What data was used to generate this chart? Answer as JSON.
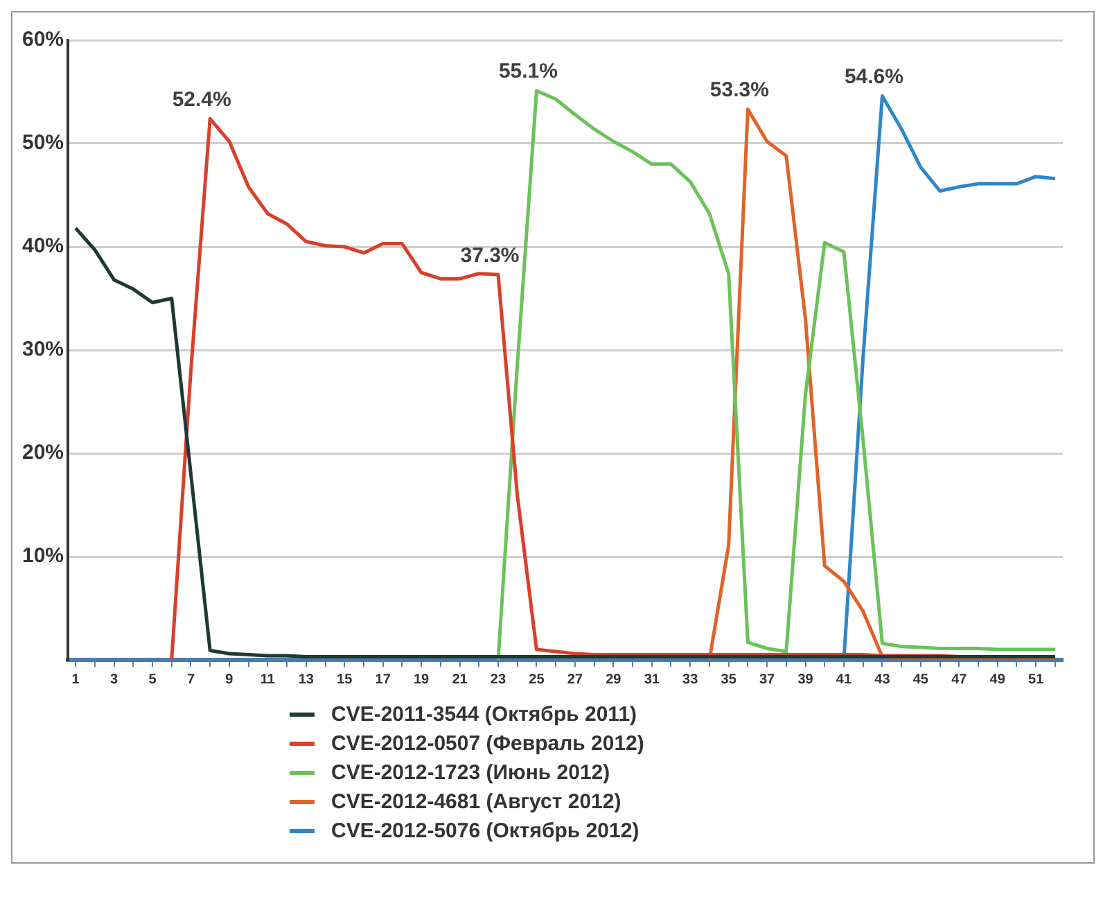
{
  "chart_data": {
    "type": "line",
    "x": [
      1,
      2,
      3,
      4,
      5,
      6,
      7,
      8,
      9,
      10,
      11,
      12,
      13,
      14,
      15,
      16,
      17,
      18,
      19,
      20,
      21,
      22,
      23,
      24,
      25,
      26,
      27,
      28,
      29,
      30,
      31,
      32,
      33,
      34,
      35,
      36,
      37,
      38,
      39,
      40,
      41,
      42,
      43,
      44,
      45,
      46,
      47,
      48,
      49,
      50,
      51,
      52
    ],
    "xlim": [
      0.6,
      52.4
    ],
    "xticks": [
      1,
      {
        "value": 2,
        "label": null
      },
      3,
      {
        "value": 4,
        "label": null
      },
      5,
      {
        "value": 6,
        "label": null
      },
      7,
      {
        "value": 8,
        "label": null
      },
      9,
      {
        "value": 10,
        "label": null
      },
      11,
      {
        "value": 12,
        "label": null
      },
      13,
      {
        "value": 14,
        "label": null
      },
      15,
      {
        "value": 16,
        "label": null
      },
      17,
      {
        "value": 18,
        "label": null
      },
      19,
      {
        "value": 20,
        "label": null
      },
      21,
      {
        "value": 22,
        "label": null
      },
      23,
      {
        "value": 24,
        "label": null
      },
      25,
      {
        "value": 26,
        "label": null
      },
      27,
      {
        "value": 28,
        "label": null
      },
      29,
      {
        "value": 30,
        "label": null
      },
      31,
      {
        "value": 32,
        "label": null
      },
      33,
      {
        "value": 34,
        "label": null
      },
      35,
      {
        "value": 36,
        "label": null
      },
      37,
      {
        "value": 38,
        "label": null
      },
      39,
      {
        "value": 40,
        "label": null
      },
      41,
      {
        "value": 42,
        "label": null
      },
      43,
      {
        "value": 44,
        "label": null
      },
      45,
      {
        "value": 46,
        "label": null
      },
      47,
      {
        "value": 48,
        "label": null
      },
      49,
      {
        "value": 50,
        "label": null
      },
      51,
      {
        "value": 52,
        "label": null
      }
    ],
    "ylim": [
      0,
      60
    ],
    "yticks": [
      {
        "value": 0,
        "label": null
      },
      {
        "value": 10,
        "label": "10%"
      },
      {
        "value": 20,
        "label": "20%"
      },
      {
        "value": 30,
        "label": "30%"
      },
      {
        "value": 40,
        "label": "40%"
      },
      {
        "value": 50,
        "label": "50%"
      },
      {
        "value": 60,
        "label": "60%"
      }
    ],
    "grid": "y",
    "legend": "bottom",
    "marker": "none",
    "line_style": "solid",
    "series": [
      {
        "name": "CVE-2011-3544 (Октябрь 2011)",
        "color": "#1e3a34",
        "values": [
          41.8,
          39.7,
          36.8,
          35.9,
          34.6,
          35.0,
          18,
          0.9,
          0.6,
          0.5,
          0.4,
          0.4,
          0.3,
          0.3,
          0.3,
          0.3,
          0.3,
          0.3,
          0.3,
          0.3,
          0.3,
          0.3,
          0.3,
          0.3,
          0.3,
          0.3,
          0.3,
          0.3,
          0.3,
          0.3,
          0.3,
          0.3,
          0.3,
          0.3,
          0.3,
          0.3,
          0.3,
          0.3,
          0.3,
          0.3,
          0.3,
          0.3,
          0.3,
          0.3,
          0.3,
          0.3,
          0.3,
          0.3,
          0.3,
          0.3,
          0.3,
          0.3
        ]
      },
      {
        "name": "CVE-2012-0507 (Февраль 2012)",
        "color": "#d8402c",
        "values": [
          null,
          null,
          null,
          null,
          null,
          0,
          28,
          52.4,
          50.2,
          45.8,
          43.2,
          42.2,
          40.5,
          40.1,
          40.0,
          39.4,
          40.3,
          40.3,
          37.5,
          36.9,
          36.9,
          37.4,
          37.3,
          15.9,
          1.0,
          0.8,
          0.6,
          0.5,
          0.5,
          0.5,
          0.5,
          0.5,
          0.5,
          0.5,
          0.5,
          0.5,
          0.5,
          0.5,
          0.5,
          0.5,
          0.5,
          0.5,
          0.4,
          0.4,
          0.4,
          0.4,
          0.3,
          0.3,
          0.3,
          0.3,
          0.3,
          0.3
        ]
      },
      {
        "name": "CVE-2012-1723 (Июнь 2012)",
        "color": "#6cc25a",
        "values": [
          null,
          null,
          null,
          null,
          null,
          null,
          null,
          null,
          null,
          null,
          null,
          null,
          null,
          null,
          null,
          null,
          null,
          null,
          null,
          null,
          null,
          null,
          0,
          28.6,
          55.1,
          54.3,
          52.8,
          51.4,
          50.2,
          49.2,
          48.0,
          48.0,
          46.3,
          43.2,
          37.4,
          1.7,
          1.1,
          0.8,
          25.7,
          40.4,
          39.5,
          21.3,
          1.6,
          1.3,
          1.2,
          1.1,
          1.1,
          1.1,
          1.0,
          1.0,
          1.0,
          1.0
        ]
      },
      {
        "name": "CVE-2012-4681 (Август 2012)",
        "color": "#e0632a",
        "values": [
          null,
          null,
          null,
          null,
          null,
          null,
          null,
          null,
          null,
          null,
          null,
          null,
          null,
          null,
          null,
          null,
          null,
          null,
          null,
          null,
          null,
          null,
          null,
          null,
          null,
          null,
          null,
          null,
          null,
          null,
          null,
          null,
          null,
          0,
          11.1,
          53.3,
          50.2,
          48.8,
          33.0,
          9.1,
          7.6,
          4.7,
          0.3,
          0.2,
          0.2,
          0.2,
          0.2,
          0.2,
          0.2,
          0.2,
          0.2,
          0.2
        ]
      },
      {
        "name": "CVE-2012-5076 (Октябрь 2012)",
        "color": "#2f86c8",
        "values": [
          null,
          null,
          null,
          null,
          null,
          null,
          null,
          null,
          null,
          null,
          null,
          null,
          null,
          null,
          null,
          null,
          null,
          null,
          null,
          null,
          null,
          null,
          null,
          null,
          null,
          null,
          null,
          null,
          null,
          null,
          null,
          null,
          null,
          null,
          null,
          null,
          null,
          null,
          null,
          null,
          0,
          29.3,
          54.6,
          51.4,
          47.7,
          45.4,
          45.8,
          46.1,
          46.1,
          46.1,
          46.8,
          46.6
        ]
      }
    ],
    "annotations": [
      {
        "text": "52.4%",
        "x": 8,
        "y": 52.4
      },
      {
        "text": "37.3%",
        "x": 23,
        "y": 37.3
      },
      {
        "text": "55.1%",
        "x": 25,
        "y": 55.1
      },
      {
        "text": "53.3%",
        "x": 36,
        "y": 53.3
      },
      {
        "text": "54.6%",
        "x": 43,
        "y": 54.6
      }
    ]
  }
}
